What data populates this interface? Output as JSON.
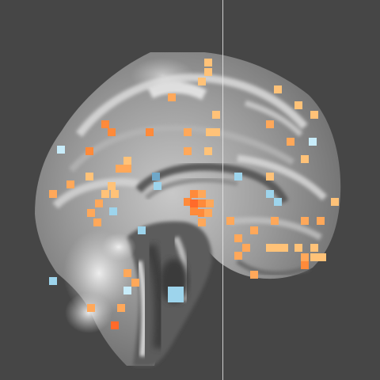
{
  "viewer": {
    "background_color": "#464646",
    "view": "sagittal",
    "crosshair_color": "#e8e8e8",
    "overlay_colormap": {
      "positive": [
        "#ff6a2a",
        "#ff8a3a",
        "#ffa85a",
        "#ffc278"
      ],
      "negative": [
        "#6fa7c8",
        "#9dd4ec",
        "#c8ecfa"
      ]
    }
  }
}
